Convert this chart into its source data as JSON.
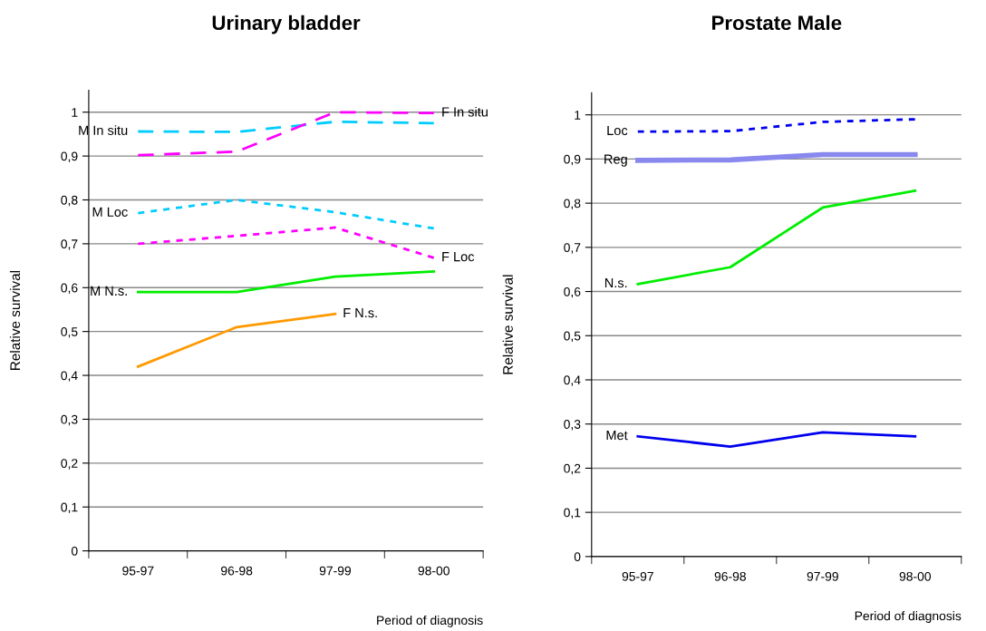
{
  "chart_data": [
    {
      "type": "line",
      "title": "Urinary bladder",
      "xlabel": "Period of diagnosis",
      "ylabel": "Relative survival",
      "categories": [
        "95-97",
        "96-98",
        "97-99",
        "98-00"
      ],
      "series": [
        {
          "color": "#00ccff",
          "line_style": "dashed",
          "values": [
            0.956,
            0.955,
            0.978,
            0.975
          ]
        },
        {
          "color": "#ff00ff",
          "line_style": "dashed",
          "values": [
            0.902,
            0.91,
            1.0,
            0.998
          ]
        },
        {
          "color": "#00ccff",
          "line_style": "dotted",
          "values": [
            0.77,
            0.8,
            0.772,
            0.735
          ]
        },
        {
          "color": "#ff00ff",
          "line_style": "dotted",
          "values": [
            0.7,
            0.718,
            0.737,
            0.668
          ]
        },
        {
          "color": "#00ee00",
          "line_style": "solid",
          "values": [
            0.59,
            0.59,
            0.625,
            0.637
          ]
        },
        {
          "color": "#ff9900",
          "line_style": "solid",
          "values": [
            0.42,
            0.51,
            0.54,
            null
          ]
        }
      ],
      "annotations": [
        {
          "text": "M In situ",
          "x": "95-97",
          "y": 0.956
        },
        {
          "text": "F In situ",
          "x": "98-00",
          "y": 0.998
        },
        {
          "text": "M Loc",
          "x": "95-97",
          "y": 0.77
        },
        {
          "text": "F Loc",
          "x": "98-00",
          "y": 0.668
        },
        {
          "text": "M N.s.",
          "x": "95-97",
          "y": 0.59
        },
        {
          "text": "F N.s.",
          "x": "97-99",
          "y": 0.54
        }
      ],
      "ylim": [
        0,
        1.05
      ],
      "yticks": [
        {
          "value": 0,
          "label": "0"
        },
        {
          "value": 0.1,
          "label": "0,1"
        },
        {
          "value": 0.2,
          "label": "0,2"
        },
        {
          "value": 0.3,
          "label": "0,3"
        },
        {
          "value": 0.4,
          "label": "0,4"
        },
        {
          "value": 0.5,
          "label": "0,5"
        },
        {
          "value": 0.6,
          "label": "0,6"
        },
        {
          "value": 0.7,
          "label": "0,7"
        },
        {
          "value": 0.8,
          "label": "0,8"
        },
        {
          "value": 0.9,
          "label": "0,9"
        },
        {
          "value": 1,
          "label": "1"
        }
      ],
      "grid": "y"
    },
    {
      "type": "line",
      "title": "Prostate Male",
      "xlabel": "Period of diagnosis",
      "ylabel": "Relative survival",
      "categories": [
        "95-97",
        "96-98",
        "97-99",
        "98-00"
      ],
      "series": [
        {
          "color": "#0000ee",
          "line_style": "dotted",
          "values": [
            0.962,
            0.963,
            0.984,
            0.99
          ]
        },
        {
          "color": "#8888ee",
          "line_style": "solid",
          "values": [
            0.897,
            0.898,
            0.91,
            0.91
          ]
        },
        {
          "color": "#00ee00",
          "line_style": "solid",
          "values": [
            0.617,
            0.655,
            0.79,
            0.828
          ]
        },
        {
          "color": "#0000ee",
          "line_style": "solid",
          "values": [
            0.272,
            0.249,
            0.281,
            0.272
          ]
        }
      ],
      "annotations": [
        {
          "text": "Loc",
          "x": "95-97",
          "y": 0.962
        },
        {
          "text": "Reg",
          "x": "95-97",
          "y": 0.897
        },
        {
          "text": "N.s.",
          "x": "95-97",
          "y": 0.617
        },
        {
          "text": "Met",
          "x": "95-97",
          "y": 0.272
        }
      ],
      "ylim": [
        0,
        1.05
      ],
      "yticks": [
        {
          "value": 0,
          "label": "0"
        },
        {
          "value": 0.1,
          "label": "0,1"
        },
        {
          "value": 0.2,
          "label": "0,2"
        },
        {
          "value": 0.3,
          "label": "0,3"
        },
        {
          "value": 0.4,
          "label": "0,4"
        },
        {
          "value": 0.5,
          "label": "0,5"
        },
        {
          "value": 0.6,
          "label": "0,6"
        },
        {
          "value": 0.7,
          "label": "0,7"
        },
        {
          "value": 0.8,
          "label": "0,8"
        },
        {
          "value": 0.9,
          "label": "0,9"
        },
        {
          "value": 1,
          "label": "1"
        }
      ],
      "grid": "y"
    }
  ]
}
